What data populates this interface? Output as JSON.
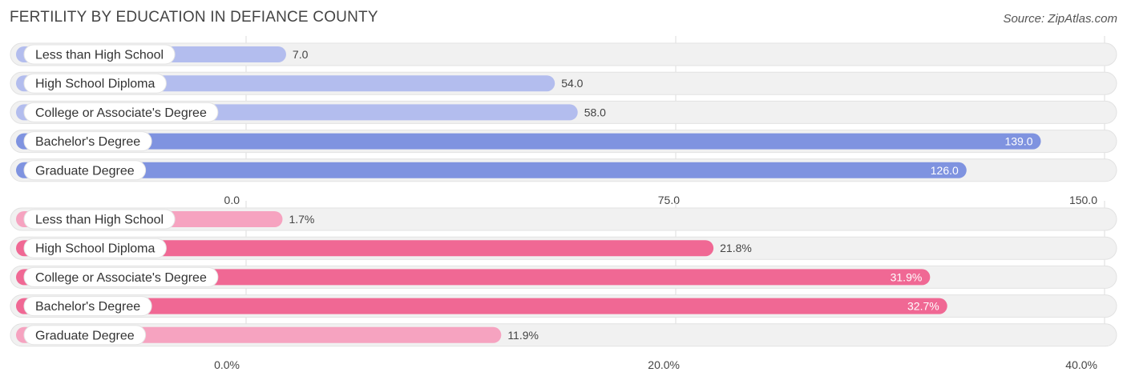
{
  "title": "FERTILITY BY EDUCATION IN DEFIANCE COUNTY",
  "source": "Source: ZipAtlas.com",
  "chart_data": [
    {
      "type": "bar",
      "orientation": "horizontal",
      "categories": [
        "Less than High School",
        "High School Diploma",
        "College or Associate's Degree",
        "Bachelor's Degree",
        "Graduate Degree"
      ],
      "values": [
        7.0,
        54.0,
        58.0,
        139.0,
        126.0
      ],
      "value_labels": [
        "7.0",
        "54.0",
        "58.0",
        "139.0",
        "126.0"
      ],
      "xlim": [
        0,
        150
      ],
      "ticks": [
        "0.0",
        "75.0",
        "150.0"
      ],
      "tick_values": [
        0,
        75,
        150
      ],
      "grid": true,
      "colors": {
        "light": "#b3bdee",
        "dark": "#7f93e0"
      }
    },
    {
      "type": "bar",
      "orientation": "horizontal",
      "categories": [
        "Less than High School",
        "High School Diploma",
        "College or Associate's Degree",
        "Bachelor's Degree",
        "Graduate Degree"
      ],
      "values": [
        1.7,
        21.8,
        31.9,
        32.7,
        11.9
      ],
      "value_labels": [
        "1.7%",
        "21.8%",
        "31.9%",
        "32.7%",
        "11.9%"
      ],
      "xlim": [
        0,
        40
      ],
      "ticks": [
        "0.0%",
        "20.0%",
        "40.0%"
      ],
      "tick_values": [
        0,
        20,
        40
      ],
      "grid": true,
      "colors": {
        "light": "#f6a3c0",
        "dark": "#f06894"
      }
    }
  ]
}
